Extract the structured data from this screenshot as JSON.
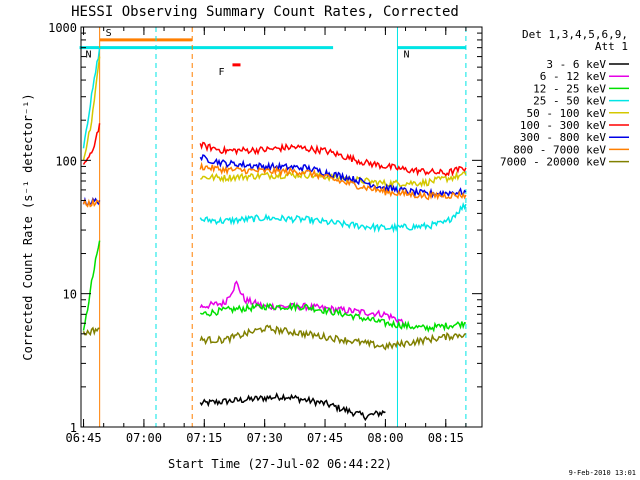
{
  "chart_data": {
    "type": "line",
    "title": "HESSI Observing Summary Count Rates, Corrected",
    "xlabel": "Start Time (27-Jul-02 06:44:22)",
    "ylabel": "Corrected Count Rate (s⁻¹ detector⁻¹)",
    "yscale": "log",
    "ylim": [
      1,
      1000
    ],
    "xlim": [
      "06:44:22",
      "08:24:00"
    ],
    "x_ticks": [
      "06:45",
      "07:00",
      "07:15",
      "07:30",
      "07:45",
      "08:00",
      "08:15"
    ],
    "y_ticks": [
      "1",
      "10",
      "100",
      "1000"
    ],
    "grid": false,
    "legend_position": "right",
    "legend_header": [
      "Det 1,3,4,5,6,9,",
      "Att 1"
    ],
    "footer_date": "9-Feb-2010 13:01",
    "flags": [
      {
        "label": "S",
        "color": "#ff7f00",
        "start": "06:49",
        "end": "07:12",
        "level": 800
      },
      {
        "label": "N",
        "color": "#00e5e5",
        "start": "06:44",
        "end": "07:47",
        "level": 700
      },
      {
        "label": "N",
        "color": "#00e5e5",
        "start": "08:03",
        "end": "08:20",
        "level": 700
      },
      {
        "label": "F",
        "color": "#ff0000",
        "start": "07:22",
        "end": "07:24",
        "level": 520
      }
    ],
    "vlines": [
      {
        "time": "06:49",
        "color": "#ff7f00",
        "style": "solid"
      },
      {
        "time": "07:03",
        "color": "#00e5e5",
        "style": "dashed"
      },
      {
        "time": "07:12",
        "color": "#ff7f00",
        "style": "dashed"
      },
      {
        "time": "08:03",
        "color": "#00e5e5",
        "style": "solid"
      },
      {
        "time": "08:20",
        "color": "#00e5e5",
        "style": "dashed"
      }
    ],
    "series": [
      {
        "name": "3 - 6 keV",
        "color": "#000000",
        "segments": [
          [
            [
              "07:14",
              1.5
            ],
            [
              "07:25",
              1.6
            ],
            [
              "07:35",
              1.7
            ],
            [
              "07:45",
              1.5
            ],
            [
              "07:55",
              1.2
            ],
            [
              "08:00",
              1.3
            ]
          ]
        ]
      },
      {
        "name": "6 - 12 keV",
        "color": "#e600e6",
        "segments": [
          [
            [
              "07:14",
              8
            ],
            [
              "07:20",
              8.5
            ],
            [
              "07:23",
              12
            ],
            [
              "07:25",
              9
            ],
            [
              "07:30",
              8
            ],
            [
              "07:40",
              8
            ],
            [
              "07:50",
              7.5
            ],
            [
              "08:00",
              7
            ],
            [
              "08:05",
              6
            ]
          ]
        ]
      },
      {
        "name": "12 - 25 keV",
        "color": "#00e000",
        "segments": [
          [
            [
              "06:45",
              5
            ],
            [
              "06:47",
              12
            ],
            [
              "06:49",
              25
            ]
          ],
          [
            [
              "07:14",
              7
            ],
            [
              "07:20",
              7.5
            ],
            [
              "07:30",
              8
            ],
            [
              "07:40",
              8
            ],
            [
              "07:50",
              7
            ],
            [
              "08:00",
              6
            ],
            [
              "08:10",
              5.5
            ],
            [
              "08:20",
              6
            ]
          ]
        ]
      },
      {
        "name": "25 - 50 keV",
        "color": "#00e5e5",
        "segments": [
          [
            [
              "06:45",
              130
            ],
            [
              "06:47",
              300
            ],
            [
              "06:49",
              700
            ]
          ],
          [
            [
              "07:14",
              36
            ],
            [
              "07:20",
              35
            ],
            [
              "07:30",
              37
            ],
            [
              "07:40",
              36
            ],
            [
              "07:50",
              33
            ],
            [
              "08:00",
              31
            ],
            [
              "08:10",
              32
            ],
            [
              "08:15",
              34
            ],
            [
              "08:20",
              47
            ]
          ]
        ]
      },
      {
        "name": "50 - 100 keV",
        "color": "#d4c800",
        "segments": [
          [
            [
              "06:45",
              100
            ],
            [
              "06:47",
              200
            ],
            [
              "06:49",
              600
            ]
          ],
          [
            [
              "07:14",
              75
            ],
            [
              "07:20",
              74
            ],
            [
              "07:30",
              77
            ],
            [
              "07:40",
              78
            ],
            [
              "07:50",
              73
            ],
            [
              "08:00",
              67
            ],
            [
              "08:10",
              68
            ],
            [
              "08:20",
              78
            ]
          ]
        ]
      },
      {
        "name": "100 - 300 keV",
        "color": "#ff0000",
        "segments": [
          [
            [
              "06:45",
              95
            ],
            [
              "06:47",
              110
            ],
            [
              "06:49",
              190
            ]
          ],
          [
            [
              "07:14",
              130
            ],
            [
              "07:20",
              118
            ],
            [
              "07:30",
              120
            ],
            [
              "07:37",
              126
            ],
            [
              "07:45",
              118
            ],
            [
              "07:55",
              96
            ],
            [
              "08:05",
              85
            ],
            [
              "08:15",
              80
            ],
            [
              "08:20",
              88
            ]
          ]
        ]
      },
      {
        "name": "300 - 800 keV",
        "color": "#0000e6",
        "segments": [
          [
            [
              "06:45",
              48
            ],
            [
              "06:49",
              50
            ]
          ],
          [
            [
              "07:14",
              105
            ],
            [
              "07:20",
              95
            ],
            [
              "07:30",
              90
            ],
            [
              "07:40",
              88
            ],
            [
              "07:50",
              75
            ],
            [
              "08:00",
              62
            ],
            [
              "08:10",
              56
            ],
            [
              "08:20",
              58
            ]
          ]
        ]
      },
      {
        "name": "800 - 7000 keV",
        "color": "#ff7f00",
        "segments": [
          [
            [
              "06:45",
              47
            ],
            [
              "06:49",
              48
            ]
          ],
          [
            [
              "07:14",
              90
            ],
            [
              "07:20",
              85
            ],
            [
              "07:30",
              83
            ],
            [
              "07:40",
              82
            ],
            [
              "07:50",
              68
            ],
            [
              "08:00",
              58
            ],
            [
              "08:10",
              54
            ],
            [
              "08:20",
              55
            ]
          ]
        ]
      },
      {
        "name": "7000 - 20000 keV",
        "color": "#808000",
        "segments": [
          [
            [
              "06:45",
              5
            ],
            [
              "06:49",
              5.5
            ]
          ],
          [
            [
              "07:14",
              4.5
            ],
            [
              "07:20",
              4.5
            ],
            [
              "07:30",
              5.5
            ],
            [
              "07:40",
              5
            ],
            [
              "07:50",
              4.5
            ],
            [
              "08:00",
              4
            ],
            [
              "08:10",
              4.5
            ],
            [
              "08:20",
              5
            ]
          ]
        ]
      }
    ]
  }
}
